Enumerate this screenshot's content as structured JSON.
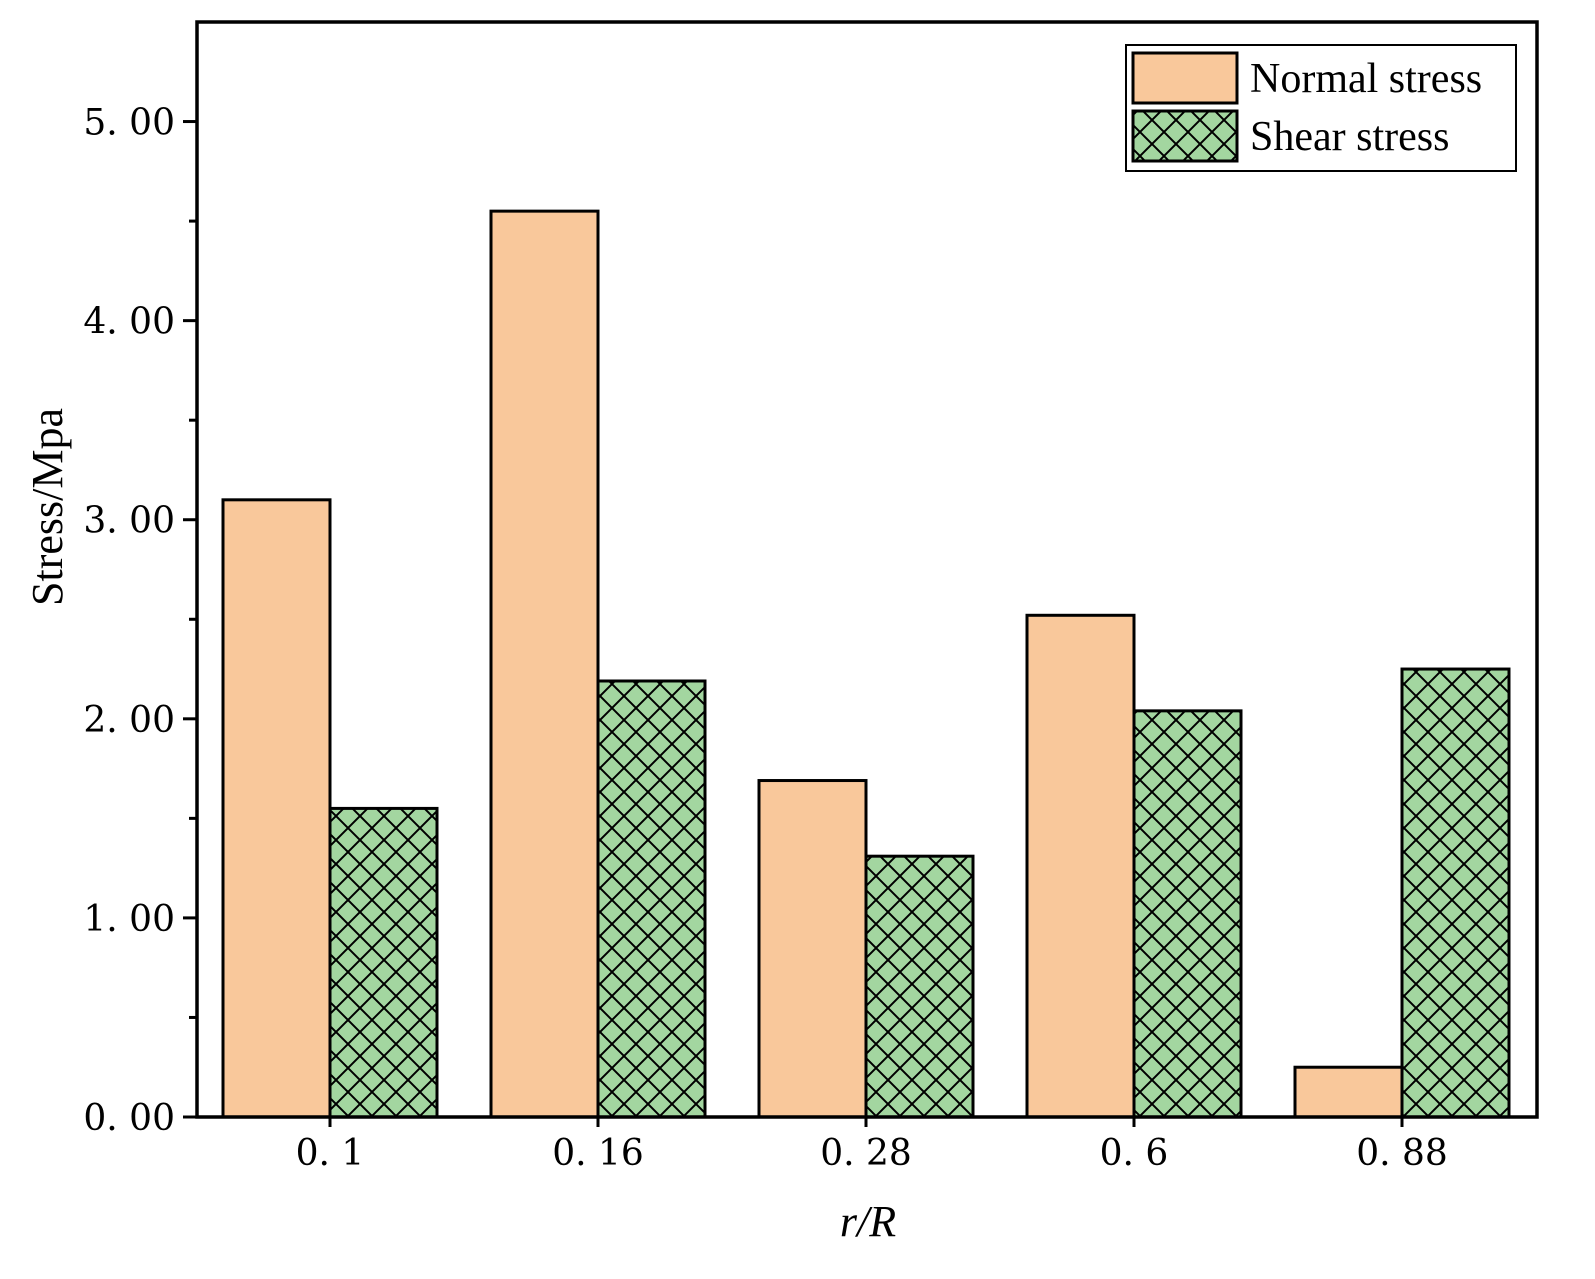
{
  "chart_data": {
    "type": "bar",
    "title": "",
    "xlabel": "r/R",
    "ylabel": "Stress/Mpa",
    "categories": [
      "0.1",
      "0.16",
      "0.28",
      "0.6",
      "0.88"
    ],
    "category_labels": [
      "0. 1",
      "0. 16",
      "0. 28",
      "0. 6",
      "0. 88"
    ],
    "series": [
      {
        "name": "Normal stress",
        "values": [
          3.1,
          4.55,
          1.69,
          2.52,
          0.25
        ],
        "color": "#F9C89B",
        "pattern": "solid"
      },
      {
        "name": "Shear stress",
        "values": [
          1.55,
          2.19,
          1.31,
          2.04,
          2.25
        ],
        "color": "#A3D6A0",
        "pattern": "crosshatch"
      }
    ],
    "ylim": [
      0,
      5.5
    ],
    "yticks": [
      0,
      1,
      2,
      3,
      4,
      5
    ],
    "ytick_labels": [
      "0. 00",
      "1. 00",
      "2. 00",
      "3. 00",
      "4. 00",
      "5. 00"
    ],
    "grid": false,
    "legend_position": "top-right"
  }
}
